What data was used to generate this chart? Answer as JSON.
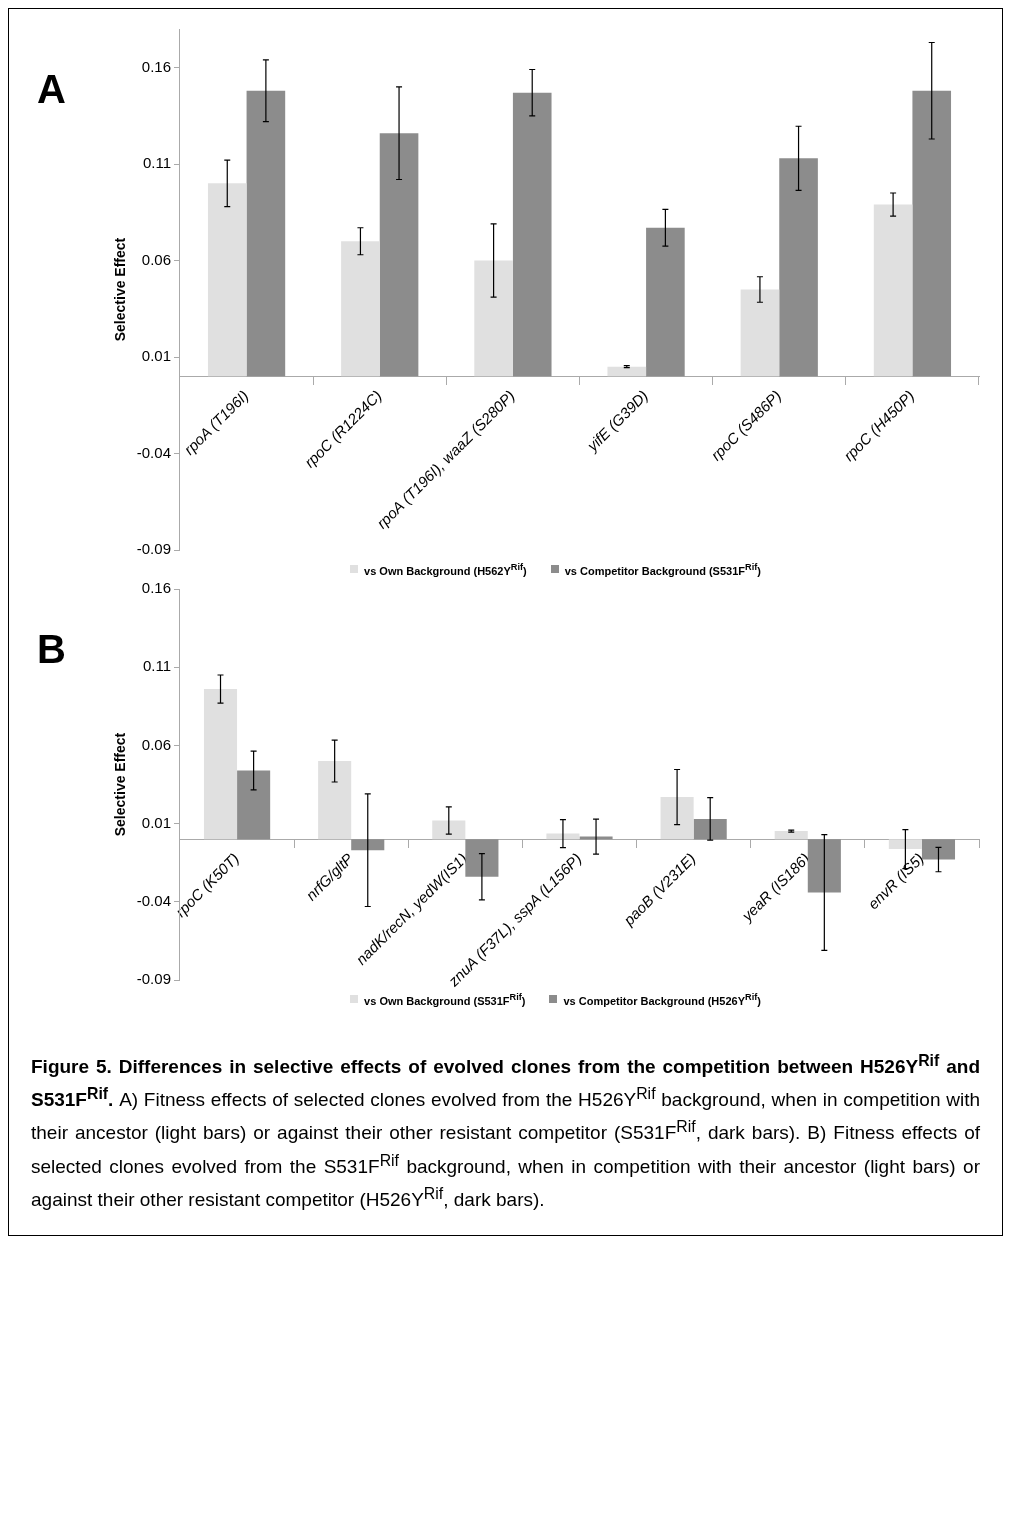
{
  "chart_data": [
    {
      "type": "bar",
      "title": "A",
      "ylabel": "Selective Effect",
      "categories": [
        "rpoA (T196I)",
        "rpoC (R1224C)",
        "rpoA (T196I), waaZ (S280P)",
        "yifE (G39D)",
        "rpoC (S486P)",
        "rpoC (H450P)"
      ],
      "series": [
        {
          "name": "vs Own Background (H562Y$^{Rif}$)",
          "color": "#e0e0e0",
          "values": [
            0.1,
            0.07,
            0.06,
            0.005,
            0.045,
            0.089
          ],
          "errors": [
            0.012,
            0.007,
            0.019,
            0.0005,
            0.0066,
            0.006
          ]
        },
        {
          "name": "vs Competitor Background (S531F$^{Rif}$)",
          "color": "#8c8c8c",
          "values": [
            0.148,
            0.126,
            0.147,
            0.077,
            0.113,
            0.148
          ],
          "errors": [
            0.016,
            0.024,
            0.012,
            0.0095,
            0.0166,
            0.025
          ]
        }
      ],
      "ylim": [
        -0.09,
        0.18
      ],
      "yticks": [
        -0.09,
        -0.04,
        0.01,
        0.06,
        0.11,
        0.16
      ],
      "grid": false,
      "legend": "bottom"
    },
    {
      "type": "bar",
      "title": "B",
      "ylabel": "Selective Effect",
      "categories": [
        "rpoC (K50T)",
        "nrfG/gltP",
        "nadK/recN, yedW(IS1)",
        "znuA (F37L), sspA (L156P)",
        "paoB (V231E)",
        "yeaR (IS186)",
        "envR (IS5)"
      ],
      "series": [
        {
          "name": "vs Own Background (S531F$^{Rif}$)",
          "color": "#e0e0e0",
          "values": [
            0.096,
            0.05,
            0.012,
            0.0036,
            0.027,
            0.0052,
            -0.0063
          ],
          "errors": [
            0.009,
            0.0134,
            0.0087,
            0.009,
            0.0176,
            0.0006,
            0.0125
          ]
        },
        {
          "name": "vs Competitor Background (H526Y$^{Rif}$)",
          "color": "#8c8c8c",
          "values": [
            0.044,
            -0.007,
            -0.024,
            0.0017,
            0.013,
            -0.034,
            -0.013
          ],
          "errors": [
            0.0124,
            0.036,
            0.0148,
            0.0112,
            0.0136,
            0.037,
            0.0078
          ]
        }
      ],
      "ylim": [
        -0.09,
        0.16
      ],
      "yticks": [
        -0.09,
        -0.04,
        0.01,
        0.06,
        0.11,
        0.16
      ],
      "grid": false,
      "legend": "bottom",
      "annotations": [
        "Figure 5. Differences in selective effects of evolved clones from the competition between H526Y$^{Rif}$ and S531F$^{Rif}$.",
        "A) Fitness effects of selected clones evolved from the H526Y$^{Rif}$ background, when in competition with their ancestor (light bars) or against their other resistant competitor (S531F$^{Rif}$, dark bars). B) Fitness effects of selected clones evolved from the S531F$^{Rif}$ background, when in competition with their ancestor (light bars) or against their other resistant competitor (H526Y$^{Rif}$, dark bars)."
      ]
    }
  ]
}
